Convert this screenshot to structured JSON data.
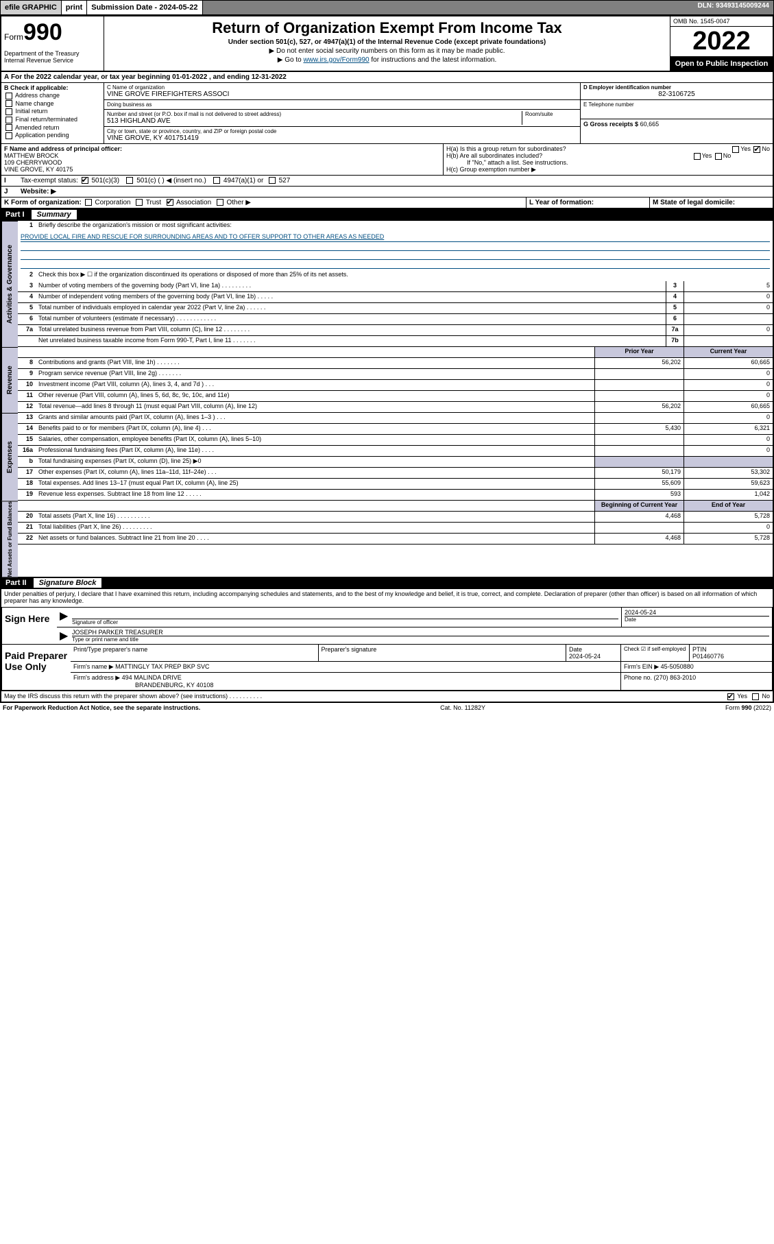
{
  "efile": {
    "graphic": "efile GRAPHIC",
    "print": "print",
    "sub_label": "Submission Date - 2024-05-22",
    "dln": "DLN: 93493145009244"
  },
  "header": {
    "form_word": "Form",
    "form_num": "990",
    "title": "Return of Organization Exempt From Income Tax",
    "subtitle": "Under section 501(c), 527, or 4947(a)(1) of the Internal Revenue Code (except private foundations)",
    "note1": "▶ Do not enter social security numbers on this form as it may be made public.",
    "note2_pre": "▶ Go to ",
    "note2_link": "www.irs.gov/Form990",
    "note2_post": " for instructions and the latest information.",
    "dept": "Department of the Treasury\nInternal Revenue Service",
    "omb": "OMB No. 1545-0047",
    "year": "2022",
    "open": "Open to Public Inspection"
  },
  "A": {
    "text": "For the 2022 calendar year, or tax year beginning 01-01-2022   , and ending 12-31-2022"
  },
  "B": {
    "hdr": "B Check if applicable:",
    "items": [
      "Address change",
      "Name change",
      "Initial return",
      "Final return/terminated",
      "Amended return",
      "Application pending"
    ]
  },
  "C": {
    "name_lbl": "C Name of organization",
    "name": "VINE GROVE FIREFIGHTERS ASSOCI",
    "dba_lbl": "Doing business as",
    "dba": "",
    "street_lbl": "Number and street (or P.O. box if mail is not delivered to street address)",
    "room_lbl": "Room/suite",
    "street": "513 HIGHLAND AVE",
    "city_lbl": "City or town, state or province, country, and ZIP or foreign postal code",
    "city": "VINE GROVE, KY  401751419"
  },
  "D": {
    "lbl": "D Employer identification number",
    "val": "82-3106725"
  },
  "E": {
    "lbl": "E Telephone number",
    "val": ""
  },
  "G": {
    "lbl": "G Gross receipts $",
    "val": "60,665"
  },
  "F": {
    "lbl": "F Name and address of principal officer:",
    "name": "MATTHEW BROCK",
    "addr1": "109 CHERRYWOOD",
    "addr2": "VINE GROVE, KY  40175"
  },
  "H": {
    "a": "H(a)  Is this a group return for subordinates?",
    "b": "H(b)  Are all subordinates included?",
    "b_note": "If \"No,\" attach a list. See instructions.",
    "c": "H(c)  Group exemption number ▶"
  },
  "I": {
    "lbl": "Tax-exempt status:",
    "opts": [
      "501(c)(3)",
      "501(c) (  ) ◀ (insert no.)",
      "4947(a)(1) or",
      "527"
    ]
  },
  "J": {
    "lbl": "Website: ▶",
    "val": ""
  },
  "K": {
    "lbl": "K Form of organization:",
    "opts": [
      "Corporation",
      "Trust",
      "Association",
      "Other ▶"
    ]
  },
  "L": {
    "lbl": "L Year of formation:",
    "val": ""
  },
  "M": {
    "lbl": "M State of legal domicile:",
    "val": ""
  },
  "part1": {
    "hdr": "Part I",
    "ttl": "Summary",
    "q1": "Briefly describe the organization's mission or most significant activities:",
    "mission": "PROVIDE LOCAL FIRE AND RESCUE FOR SURROUNDING AREAS AND TO OFFER SUPPORT TO OTHER AREAS AS NEEDED",
    "q2": "Check this box ▶ ☐  if the organization discontinued its operations or disposed of more than 25% of its net assets.",
    "lines_ag": [
      {
        "n": "3",
        "d": "Number of voting members of the governing body (Part VI, line 1a)  .    .    .    .    .    .    .    .    .",
        "box": "3",
        "v": "5"
      },
      {
        "n": "4",
        "d": "Number of independent voting members of the governing body (Part VI, line 1b)   .    .    .    .    .",
        "box": "4",
        "v": "0"
      },
      {
        "n": "5",
        "d": "Total number of individuals employed in calendar year 2022 (Part V, line 2a)    .    .    .    .    .    .",
        "box": "5",
        "v": "0"
      },
      {
        "n": "6",
        "d": "Total number of volunteers (estimate if necessary)    .    .    .    .    .    .    .    .    .    .    .    .",
        "box": "6",
        "v": ""
      },
      {
        "n": "7a",
        "d": "Total unrelated business revenue from Part VIII, column (C), line 12   .    .    .    .    .    .    .    .",
        "box": "7a",
        "v": "0"
      },
      {
        "n": "",
        "d": "Net unrelated business taxable income from Form 990-T, Part I, line 11   .    .    .    .    .    .    .",
        "box": "7b",
        "v": ""
      }
    ],
    "col_prior": "Prior Year",
    "col_curr": "Current Year",
    "rev": [
      {
        "n": "8",
        "d": "Contributions and grants (Part VIII, line 1h)    .    .    .    .    .    .    .",
        "p": "56,202",
        "c": "60,665"
      },
      {
        "n": "9",
        "d": "Program service revenue (Part VIII, line 2g)    .    .    .    .    .    .    .",
        "p": "",
        "c": "0"
      },
      {
        "n": "10",
        "d": "Investment income (Part VIII, column (A), lines 3, 4, and 7d )    .    .    .",
        "p": "",
        "c": "0"
      },
      {
        "n": "11",
        "d": "Other revenue (Part VIII, column (A), lines 5, 6d, 8c, 9c, 10c, and 11e)",
        "p": "",
        "c": "0"
      },
      {
        "n": "12",
        "d": "Total revenue—add lines 8 through 11 (must equal Part VIII, column (A), line 12)",
        "p": "56,202",
        "c": "60,665"
      }
    ],
    "exp": [
      {
        "n": "13",
        "d": "Grants and similar amounts paid (Part IX, column (A), lines 1–3 )    .    .    .",
        "p": "",
        "c": "0"
      },
      {
        "n": "14",
        "d": "Benefits paid to or for members (Part IX, column (A), line 4)    .    .    .",
        "p": "5,430",
        "c": "6,321"
      },
      {
        "n": "15",
        "d": "Salaries, other compensation, employee benefits (Part IX, column (A), lines 5–10)",
        "p": "",
        "c": "0"
      },
      {
        "n": "16a",
        "d": "Professional fundraising fees (Part IX, column (A), line 11e)    .    .    .    .",
        "p": "",
        "c": "0"
      },
      {
        "n": "b",
        "d": "Total fundraising expenses (Part IX, column (D), line 25) ▶0",
        "shade": true
      },
      {
        "n": "17",
        "d": "Other expenses (Part IX, column (A), lines 11a–11d, 11f–24e)   .    .    .",
        "p": "50,179",
        "c": "53,302"
      },
      {
        "n": "18",
        "d": "Total expenses. Add lines 13–17 (must equal Part IX, column (A), line 25)",
        "p": "55,609",
        "c": "59,623"
      },
      {
        "n": "19",
        "d": "Revenue less expenses. Subtract line 18 from line 12   .    .    .    .    .",
        "p": "593",
        "c": "1,042"
      }
    ],
    "col_beg": "Beginning of Current Year",
    "col_end": "End of Year",
    "na": [
      {
        "n": "20",
        "d": "Total assets (Part X, line 16)    .    .    .    .    .    .    .    .    .    .",
        "p": "4,468",
        "c": "5,728"
      },
      {
        "n": "21",
        "d": "Total liabilities (Part X, line 26)    .    .    .    .    .    .    .    .    .",
        "p": "",
        "c": "0"
      },
      {
        "n": "22",
        "d": "Net assets or fund balances. Subtract line 21 from line 20   .    .    .    .",
        "p": "4,468",
        "c": "5,728"
      }
    ],
    "side_ag": "Activities & Governance",
    "side_rev": "Revenue",
    "side_exp": "Expenses",
    "side_na": "Net Assets or Fund Balances"
  },
  "part2": {
    "hdr": "Part II",
    "ttl": "Signature Block",
    "decl": "Under penalties of perjury, I declare that I have examined this return, including accompanying schedules and statements, and to the best of my knowledge and belief, it is true, correct, and complete. Declaration of preparer (other than officer) is based on all information of which preparer has any knowledge."
  },
  "sign": {
    "lbl": "Sign Here",
    "sig_lbl": "Signature of officer",
    "date_lbl": "Date",
    "date": "2024-05-24",
    "name": "JOSEPH PARKER TREASURER",
    "name_lbl": "Type or print name and title"
  },
  "paid": {
    "lbl": "Paid Preparer Use Only",
    "cols": [
      "Print/Type preparer's name",
      "Preparer's signature",
      "Date",
      "",
      "PTIN"
    ],
    "date": "2024-05-24",
    "check_lbl": "Check ☑ if self-employed",
    "ptin": "P01460776",
    "firm_name_lbl": "Firm's name      ▶",
    "firm_name": "MATTINGLY TAX PREP BKP SVC",
    "firm_ein_lbl": "Firm's EIN ▶",
    "firm_ein": "45-5050880",
    "firm_addr_lbl": "Firm's address ▶",
    "firm_addr1": "494 MALINDA DRIVE",
    "firm_addr2": "BRANDENBURG, KY  40108",
    "phone_lbl": "Phone no.",
    "phone": "(270) 863-2010"
  },
  "discuss": {
    "q": "May the IRS discuss this return with the preparer shown above? (see instructions)    .    .    .    .    .    .    .    .    .    .",
    "yes": "Yes",
    "no": "No"
  },
  "footer": {
    "l": "For Paperwork Reduction Act Notice, see the separate instructions.",
    "m": "Cat. No. 11282Y",
    "r": "Form 990 (2022)"
  }
}
